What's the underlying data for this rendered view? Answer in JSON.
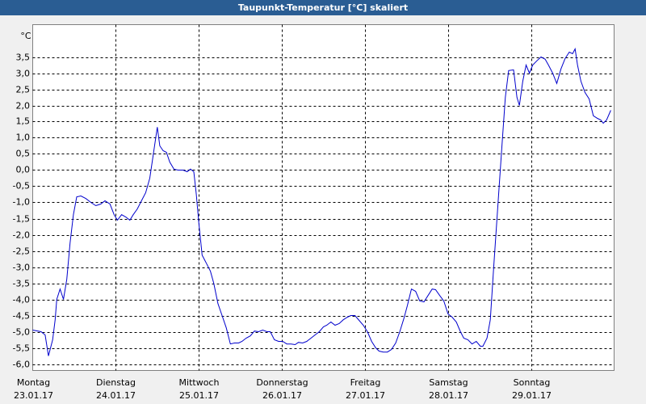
{
  "chart_data": {
    "type": "line",
    "title": "Taupunkt-Temperatur [°C] skaliert",
    "y_label": "°C",
    "color": "#0000cc",
    "grid": true,
    "xlim": [
      0,
      7
    ],
    "ylim": [
      -6.2,
      4.5
    ],
    "xticks": [
      {
        "value": 0,
        "label": "Montag",
        "date": "23.01.17"
      },
      {
        "value": 1,
        "label": "Dienstag",
        "date": "24.01.17"
      },
      {
        "value": 2,
        "label": "Mittwoch",
        "date": "25.01.17"
      },
      {
        "value": 3,
        "label": "Donnerstag",
        "date": "26.01.17"
      },
      {
        "value": 4,
        "label": "Freitag",
        "date": "27.01.17"
      },
      {
        "value": 5,
        "label": "Samstag",
        "date": "28.01.17"
      },
      {
        "value": 6,
        "label": "Sonntag",
        "date": "29.01.17"
      }
    ],
    "yticks": [
      {
        "value": 3.5,
        "label": "3,5"
      },
      {
        "value": 3.0,
        "label": "3,0"
      },
      {
        "value": 2.5,
        "label": "2,5"
      },
      {
        "value": 2.0,
        "label": "2,0"
      },
      {
        "value": 1.5,
        "label": "1,5"
      },
      {
        "value": 1.0,
        "label": "1,0"
      },
      {
        "value": 0.5,
        "label": "0,5"
      },
      {
        "value": 0.0,
        "label": "0,0"
      },
      {
        "value": -0.5,
        "label": "-0,5"
      },
      {
        "value": -1.0,
        "label": "-1,0"
      },
      {
        "value": -1.5,
        "label": "-1,5"
      },
      {
        "value": -2.0,
        "label": "-2,0"
      },
      {
        "value": -2.5,
        "label": "-2,5"
      },
      {
        "value": -3.0,
        "label": "-3,0"
      },
      {
        "value": -3.5,
        "label": "-3,5"
      },
      {
        "value": -4.0,
        "label": "-4,0"
      },
      {
        "value": -4.5,
        "label": "-4,5"
      },
      {
        "value": -5.0,
        "label": "-5,0"
      },
      {
        "value": -5.5,
        "label": "-5,5"
      },
      {
        "value": -6.0,
        "label": "-6,0"
      }
    ],
    "x": [
      0.0,
      0.1,
      0.15,
      0.19,
      0.24,
      0.27,
      0.29,
      0.33,
      0.37,
      0.41,
      0.45,
      0.49,
      0.53,
      0.58,
      0.64,
      0.7,
      0.76,
      0.82,
      0.87,
      0.93,
      0.98,
      1.02,
      1.07,
      1.12,
      1.17,
      1.21,
      1.26,
      1.31,
      1.36,
      1.41,
      1.46,
      1.5,
      1.53,
      1.57,
      1.61,
      1.65,
      1.7,
      1.75,
      1.81,
      1.86,
      1.9,
      1.94,
      1.97,
      2.0,
      2.04,
      2.09,
      2.14,
      2.18,
      2.23,
      2.28,
      2.33,
      2.38,
      2.43,
      2.48,
      2.52,
      2.57,
      2.62,
      2.67,
      2.72,
      2.77,
      2.82,
      2.86,
      2.91,
      2.96,
      3.01,
      3.06,
      3.11,
      3.16,
      3.2,
      3.25,
      3.3,
      3.35,
      3.4,
      3.45,
      3.5,
      3.54,
      3.59,
      3.64,
      3.69,
      3.74,
      3.79,
      3.83,
      3.88,
      3.93,
      3.98,
      4.03,
      4.08,
      4.13,
      4.17,
      4.22,
      4.27,
      4.32,
      4.37,
      4.42,
      4.47,
      4.51,
      4.56,
      4.61,
      4.66,
      4.71,
      4.76,
      4.81,
      4.85,
      4.9,
      4.95,
      5.0,
      5.05,
      5.1,
      5.15,
      5.19,
      5.24,
      5.29,
      5.34,
      5.39,
      5.42,
      5.47,
      5.51,
      5.55,
      5.61,
      5.65,
      5.69,
      5.73,
      5.79,
      5.83,
      5.86,
      5.9,
      5.94,
      5.98,
      6.02,
      6.07,
      6.12,
      6.17,
      6.21,
      6.26,
      6.31,
      6.36,
      6.41,
      6.46,
      6.5,
      6.53,
      6.56,
      6.6,
      6.65,
      6.7,
      6.75,
      6.8,
      6.84,
      6.87,
      6.91,
      6.96
    ],
    "values": [
      -4.95,
      -5.0,
      -5.1,
      -5.75,
      -5.25,
      -4.63,
      -4.0,
      -3.68,
      -4.0,
      -3.38,
      -2.25,
      -1.38,
      -0.83,
      -0.8,
      -0.88,
      -1.0,
      -1.1,
      -1.05,
      -0.95,
      -1.05,
      -1.38,
      -1.55,
      -1.38,
      -1.45,
      -1.55,
      -1.38,
      -1.2,
      -0.95,
      -0.7,
      -0.25,
      0.63,
      1.33,
      0.75,
      0.6,
      0.55,
      0.25,
      0.03,
      0,
      0,
      -0.05,
      0.03,
      -0.05,
      -0.75,
      -1.63,
      -2.63,
      -2.88,
      -3.13,
      -3.5,
      -4.13,
      -4.5,
      -4.88,
      -5.38,
      -5.35,
      -5.35,
      -5.3,
      -5.2,
      -5.13,
      -4.98,
      -5.0,
      -4.95,
      -5.0,
      -5.0,
      -5.25,
      -5.3,
      -5.3,
      -5.38,
      -5.38,
      -5.4,
      -5.33,
      -5.35,
      -5.3,
      -5.2,
      -5.1,
      -5.0,
      -4.85,
      -4.8,
      -4.7,
      -4.8,
      -4.75,
      -4.63,
      -4.55,
      -4.5,
      -4.5,
      -4.65,
      -4.8,
      -5.0,
      -5.3,
      -5.5,
      -5.6,
      -5.63,
      -5.63,
      -5.55,
      -5.35,
      -5.0,
      -4.58,
      -4.2,
      -3.68,
      -3.75,
      -4.05,
      -4.08,
      -3.88,
      -3.68,
      -3.7,
      -3.88,
      -4.05,
      -4.45,
      -4.55,
      -4.7,
      -5.0,
      -5.2,
      -5.25,
      -5.38,
      -5.3,
      -5.45,
      -5.45,
      -5.2,
      -4.63,
      -3.0,
      -0.75,
      0.75,
      2.25,
      3.08,
      3.1,
      2.25,
      2.0,
      2.75,
      3.25,
      3.0,
      3.25,
      3.38,
      3.5,
      3.43,
      3.25,
      3.0,
      2.68,
      3.13,
      3.45,
      3.65,
      3.6,
      3.75,
      3.25,
      2.75,
      2.4,
      2.2,
      1.68,
      1.6,
      1.55,
      1.45,
      1.55,
      1.85
    ]
  }
}
